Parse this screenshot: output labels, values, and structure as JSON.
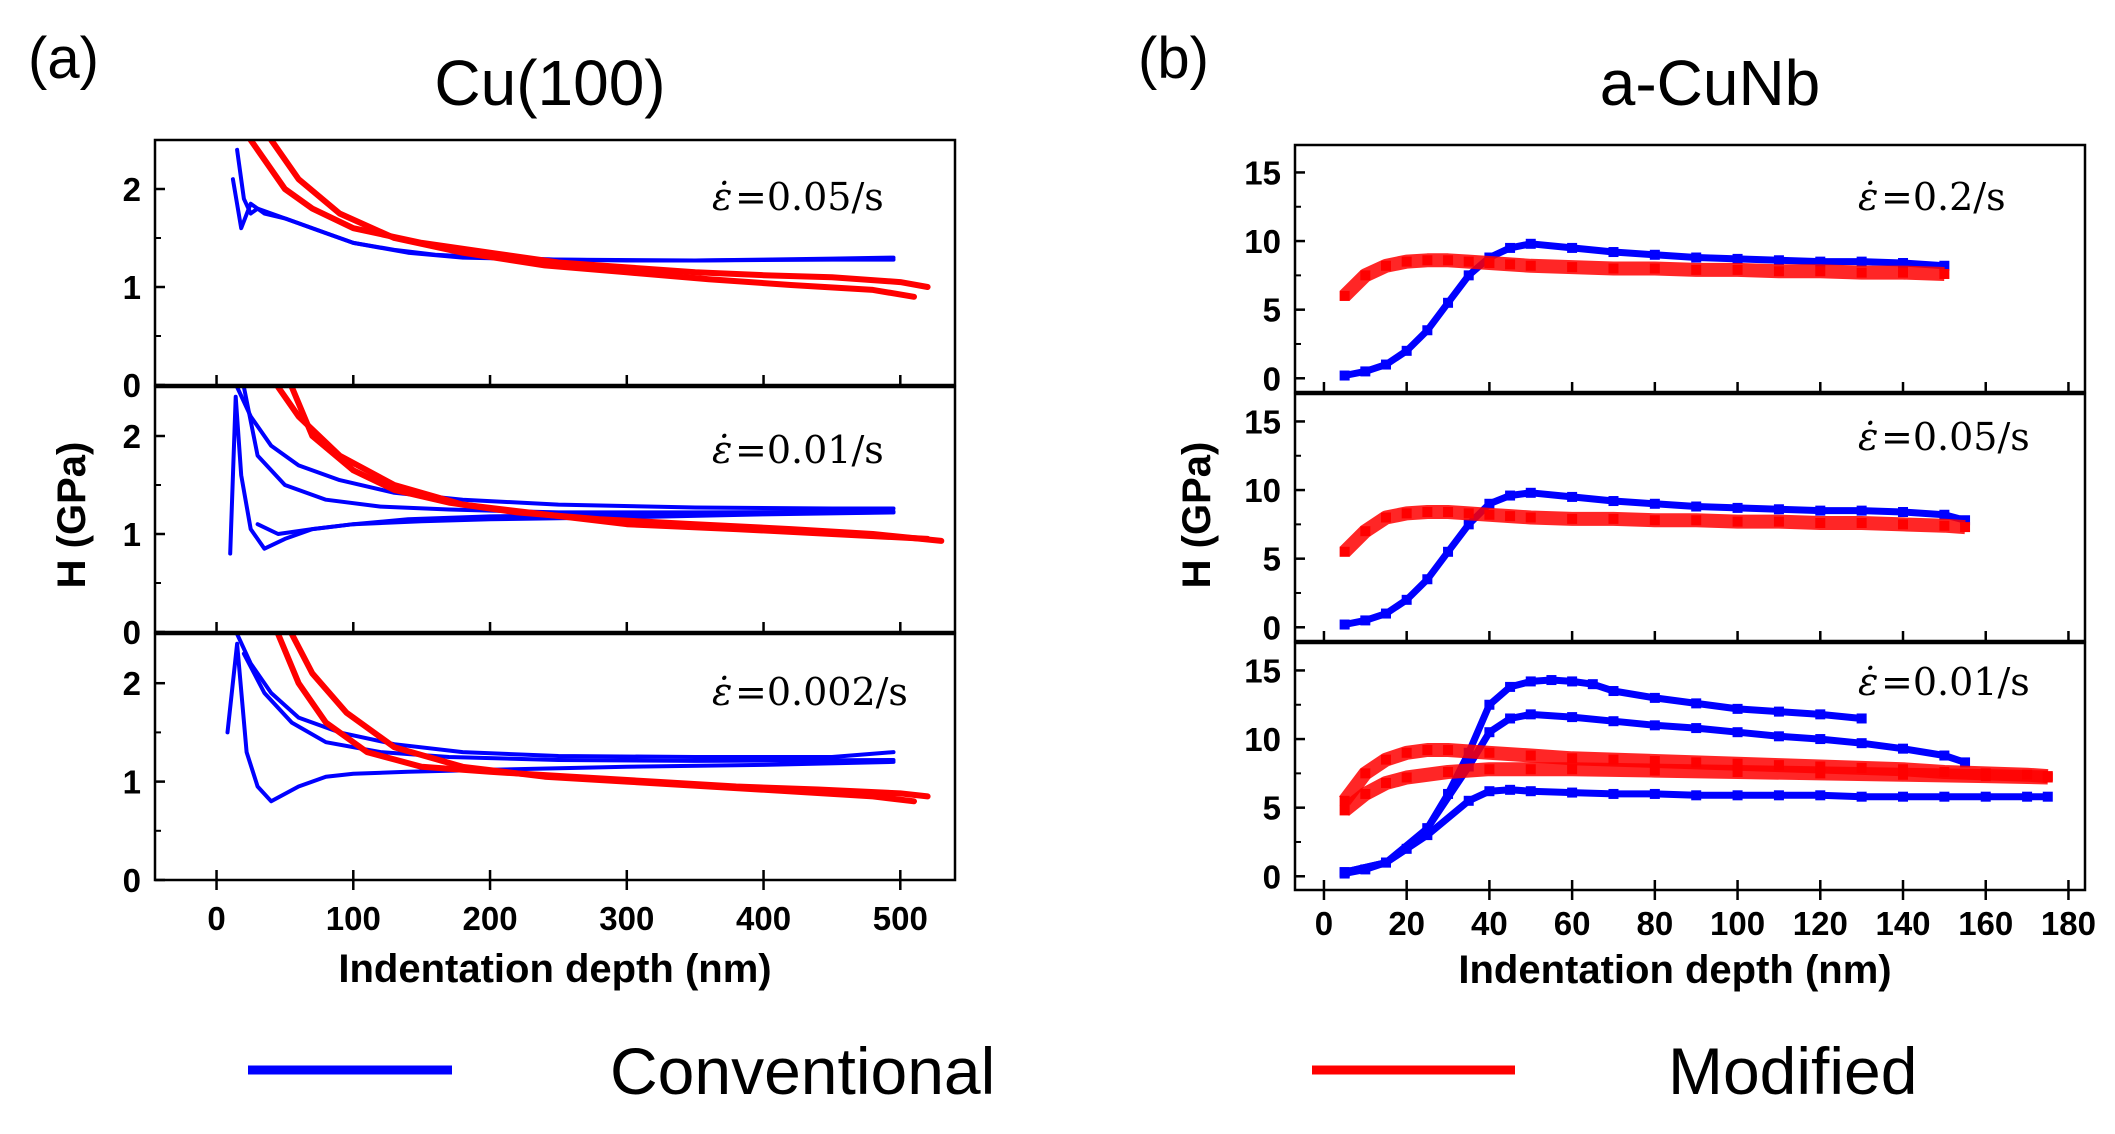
{
  "colors": {
    "conventional": "#0000ff",
    "modified": "#ff0000",
    "axis": "#000000"
  },
  "legend": [
    {
      "label": "Conventional",
      "color": "#0000ff"
    },
    {
      "label": "Modified",
      "color": "#ff0000"
    }
  ],
  "chart_data": [
    {
      "panel": "(a)",
      "title": "Cu(100)",
      "type": "line",
      "xlabel": "Indentation depth (nm)",
      "ylabel": "H (GPa)",
      "xlim": [
        -45,
        540
      ],
      "xticks": [
        0,
        100,
        200,
        300,
        400,
        500
      ],
      "ylim": [
        0,
        2.5
      ],
      "yticks": [
        0,
        1,
        2
      ],
      "subplots": [
        {
          "rate_label": "=0.05/s",
          "series": [
            {
              "name": "Conventional",
              "x": [
                15,
                20,
                25,
                30,
                40,
                60,
                80,
                100,
                130,
                160,
                200,
                250,
                300,
                350,
                400,
                450,
                495
              ],
              "y": [
                2.4,
                1.9,
                1.75,
                1.8,
                1.75,
                1.65,
                1.55,
                1.45,
                1.38,
                1.33,
                1.3,
                1.28,
                1.27,
                1.27,
                1.28,
                1.29,
                1.3
              ]
            },
            {
              "name": "Conventional",
              "x": [
                12,
                18,
                25,
                35,
                50,
                70,
                100,
                140,
                180,
                250,
                350,
                450,
                495
              ],
              "y": [
                2.1,
                1.6,
                1.85,
                1.75,
                1.7,
                1.6,
                1.45,
                1.35,
                1.3,
                1.28,
                1.27,
                1.28,
                1.28
              ]
            },
            {
              "name": "Modified",
              "x": [
                25,
                35,
                50,
                70,
                100,
                150,
                200,
                250,
                300,
                350,
                400,
                450,
                500,
                520
              ],
              "y": [
                2.5,
                2.3,
                2.0,
                1.8,
                1.6,
                1.45,
                1.35,
                1.25,
                1.2,
                1.15,
                1.12,
                1.1,
                1.05,
                1.0
              ]
            },
            {
              "name": "Modified",
              "x": [
                40,
                60,
                90,
                130,
                180,
                240,
                300,
                360,
                420,
                480,
                510
              ],
              "y": [
                2.5,
                2.1,
                1.75,
                1.5,
                1.35,
                1.22,
                1.15,
                1.08,
                1.02,
                0.97,
                0.9
              ]
            }
          ]
        },
        {
          "rate_label": "=0.01/s",
          "series": [
            {
              "name": "Conventional",
              "x": [
                10,
                14,
                18,
                25,
                35,
                50,
                70,
                100,
                150,
                200,
                300,
                400,
                495
              ],
              "y": [
                0.8,
                2.4,
                1.6,
                1.05,
                0.85,
                0.95,
                1.05,
                1.1,
                1.13,
                1.15,
                1.17,
                1.2,
                1.22
              ]
            },
            {
              "name": "Conventional",
              "x": [
                15,
                25,
                40,
                60,
                90,
                130,
                180,
                250,
                350,
                450,
                495
              ],
              "y": [
                2.5,
                2.2,
                1.9,
                1.7,
                1.55,
                1.42,
                1.35,
                1.3,
                1.27,
                1.26,
                1.26
              ]
            },
            {
              "name": "Conventional",
              "x": [
                20,
                30,
                50,
                80,
                120,
                170,
                250,
                350,
                495
              ],
              "y": [
                2.5,
                1.8,
                1.5,
                1.35,
                1.28,
                1.25,
                1.22,
                1.22,
                1.23
              ]
            },
            {
              "name": "Conventional",
              "x": [
                30,
                45,
                70,
                100,
                140,
                200,
                300,
                400,
                495
              ],
              "y": [
                1.1,
                1.0,
                1.05,
                1.1,
                1.15,
                1.18,
                1.2,
                1.21,
                1.22
              ]
            },
            {
              "name": "Modified",
              "x": [
                55,
                70,
                100,
                130,
                170,
                220,
                280,
                350,
                420,
                480,
                530
              ],
              "y": [
                2.5,
                2.0,
                1.65,
                1.45,
                1.32,
                1.22,
                1.15,
                1.1,
                1.05,
                1.0,
                0.93
              ]
            },
            {
              "name": "Modified",
              "x": [
                45,
                60,
                90,
                130,
                180,
                240,
                300,
                380,
                450,
                520
              ],
              "y": [
                2.5,
                2.2,
                1.8,
                1.5,
                1.3,
                1.2,
                1.1,
                1.05,
                1.0,
                0.95
              ]
            }
          ]
        },
        {
          "rate_label": "=0.002/s",
          "series": [
            {
              "name": "Conventional",
              "x": [
                8,
                15,
                22,
                30,
                40,
                60,
                80,
                100,
                140,
                200,
                300,
                400,
                495
              ],
              "y": [
                1.5,
                2.4,
                1.3,
                0.95,
                0.8,
                0.95,
                1.05,
                1.08,
                1.1,
                1.12,
                1.15,
                1.17,
                1.2
              ]
            },
            {
              "name": "Conventional",
              "x": [
                15,
                25,
                40,
                60,
                90,
                130,
                180,
                250,
                350,
                450,
                495
              ],
              "y": [
                2.5,
                2.2,
                1.9,
                1.65,
                1.5,
                1.38,
                1.3,
                1.26,
                1.25,
                1.25,
                1.3
              ]
            },
            {
              "name": "Conventional",
              "x": [
                20,
                35,
                55,
                80,
                120,
                170,
                250,
                350,
                495
              ],
              "y": [
                2.3,
                1.9,
                1.6,
                1.4,
                1.3,
                1.25,
                1.22,
                1.21,
                1.22
              ]
            },
            {
              "name": "Modified",
              "x": [
                45,
                60,
                80,
                110,
                150,
                200,
                260,
                320,
                380,
                440,
                500,
                520
              ],
              "y": [
                2.5,
                2.0,
                1.6,
                1.3,
                1.15,
                1.1,
                1.05,
                1.0,
                0.95,
                0.92,
                0.88,
                0.85
              ]
            },
            {
              "name": "Modified",
              "x": [
                55,
                70,
                95,
                130,
                180,
                240,
                300,
                360,
                420,
                480,
                510
              ],
              "y": [
                2.5,
                2.1,
                1.7,
                1.35,
                1.15,
                1.05,
                1.0,
                0.95,
                0.9,
                0.85,
                0.8
              ]
            }
          ]
        }
      ]
    },
    {
      "panel": "(b)",
      "title": "a-CuNb",
      "type": "scatter",
      "xlabel": "Indentation depth (nm)",
      "ylabel": "H (GPa)",
      "xlim": [
        -7,
        184
      ],
      "xticks": [
        0,
        20,
        40,
        60,
        80,
        100,
        120,
        140,
        160,
        180
      ],
      "ylim": [
        -1,
        17
      ],
      "yticks": [
        0,
        5,
        10,
        15
      ],
      "subplots": [
        {
          "rate_label": "=0.2/s",
          "series": [
            {
              "name": "Conventional",
              "x": [
                5,
                10,
                15,
                20,
                25,
                30,
                35,
                40,
                45,
                50,
                60,
                70,
                80,
                90,
                100,
                110,
                120,
                130,
                140,
                150
              ],
              "y": [
                0.2,
                0.5,
                1.0,
                2.0,
                3.5,
                5.5,
                7.5,
                8.8,
                9.5,
                9.8,
                9.5,
                9.2,
                9.0,
                8.8,
                8.7,
                8.6,
                8.5,
                8.5,
                8.4,
                8.2
              ]
            },
            {
              "name": "Modified",
              "x": [
                5,
                10,
                15,
                20,
                25,
                30,
                35,
                40,
                45,
                50,
                60,
                70,
                80,
                90,
                100,
                110,
                120,
                130,
                140,
                150
              ],
              "y": [
                6.0,
                7.5,
                8.2,
                8.5,
                8.6,
                8.6,
                8.5,
                8.4,
                8.3,
                8.2,
                8.1,
                8.0,
                8.0,
                7.9,
                7.9,
                7.8,
                7.8,
                7.7,
                7.7,
                7.6
              ]
            }
          ]
        },
        {
          "rate_label": "=0.05/s",
          "series": [
            {
              "name": "Conventional",
              "x": [
                5,
                10,
                15,
                20,
                25,
                30,
                35,
                40,
                45,
                50,
                60,
                70,
                80,
                90,
                100,
                110,
                120,
                130,
                140,
                150,
                155
              ],
              "y": [
                0.2,
                0.5,
                1.0,
                2.0,
                3.5,
                5.5,
                7.5,
                9.0,
                9.6,
                9.8,
                9.5,
                9.2,
                9.0,
                8.8,
                8.7,
                8.6,
                8.5,
                8.5,
                8.4,
                8.2,
                7.8
              ]
            },
            {
              "name": "Modified",
              "x": [
                5,
                10,
                15,
                20,
                25,
                30,
                35,
                40,
                45,
                50,
                60,
                70,
                80,
                90,
                100,
                110,
                120,
                130,
                140,
                150,
                155
              ],
              "y": [
                5.5,
                7.0,
                8.0,
                8.3,
                8.4,
                8.4,
                8.3,
                8.2,
                8.1,
                8.0,
                7.9,
                7.9,
                7.8,
                7.8,
                7.7,
                7.7,
                7.6,
                7.6,
                7.5,
                7.4,
                7.3
              ]
            }
          ]
        },
        {
          "rate_label": "=0.01/s",
          "series": [
            {
              "name": "Conventional",
              "x": [
                5,
                10,
                15,
                20,
                25,
                30,
                35,
                40,
                45,
                50,
                55,
                60,
                65,
                70,
                80,
                90,
                100,
                110,
                120,
                130
              ],
              "y": [
                0.2,
                0.5,
                1.0,
                2.0,
                3.5,
                6.0,
                9.0,
                12.5,
                13.8,
                14.2,
                14.3,
                14.2,
                14.0,
                13.5,
                13.0,
                12.6,
                12.2,
                12.0,
                11.8,
                11.5
              ]
            },
            {
              "name": "Conventional",
              "x": [
                5,
                15,
                25,
                35,
                40,
                45,
                50,
                60,
                70,
                80,
                90,
                100,
                110,
                120,
                130,
                140,
                150,
                155
              ],
              "y": [
                0.3,
                1.0,
                3.5,
                8.0,
                10.5,
                11.5,
                11.8,
                11.6,
                11.3,
                11.0,
                10.8,
                10.5,
                10.2,
                10.0,
                9.7,
                9.3,
                8.8,
                8.3
              ]
            },
            {
              "name": "Conventional",
              "x": [
                5,
                15,
                25,
                35,
                40,
                45,
                50,
                60,
                70,
                80,
                90,
                100,
                110,
                120,
                130,
                140,
                150,
                160,
                170,
                175
              ],
              "y": [
                0.3,
                1.0,
                3.0,
                5.5,
                6.2,
                6.3,
                6.2,
                6.1,
                6.0,
                6.0,
                5.9,
                5.9,
                5.9,
                5.9,
                5.8,
                5.8,
                5.8,
                5.8,
                5.8,
                5.8
              ]
            },
            {
              "name": "Modified",
              "x": [
                5,
                10,
                15,
                20,
                25,
                30,
                40,
                50,
                60,
                70,
                80,
                90,
                100,
                110,
                120,
                130,
                140,
                150,
                160,
                170,
                175
              ],
              "y": [
                5.5,
                7.5,
                8.5,
                9.0,
                9.2,
                9.2,
                9.0,
                8.8,
                8.6,
                8.5,
                8.4,
                8.3,
                8.2,
                8.1,
                8.0,
                7.9,
                7.8,
                7.6,
                7.5,
                7.4,
                7.3
              ]
            },
            {
              "name": "Modified",
              "x": [
                5,
                10,
                15,
                20,
                30,
                40,
                50,
                60,
                80,
                100,
                120,
                140,
                160,
                175
              ],
              "y": [
                4.8,
                6.0,
                6.8,
                7.2,
                7.6,
                7.8,
                7.8,
                7.8,
                7.7,
                7.6,
                7.5,
                7.4,
                7.3,
                7.2
              ]
            }
          ]
        }
      ]
    }
  ]
}
